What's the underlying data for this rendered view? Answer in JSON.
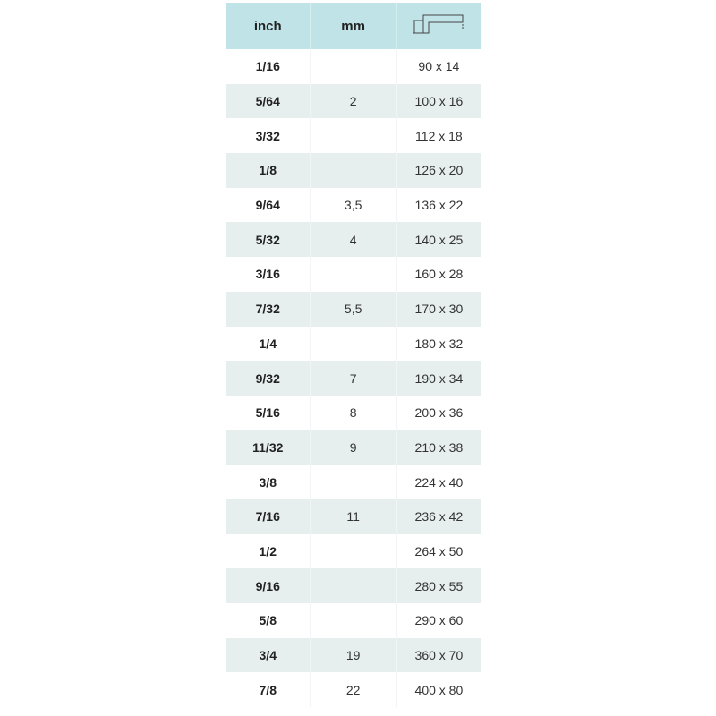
{
  "table": {
    "headers": {
      "inch": "inch",
      "mm": "mm",
      "dimension_icon": "hex-key-dimension-icon"
    },
    "colors": {
      "header_bg": "#c0e3e8",
      "alt_row_bg": "#e6efee"
    },
    "rows": [
      {
        "inch": "1/16",
        "mm": "",
        "size": "90 x 14"
      },
      {
        "inch": "5/64",
        "mm": "2",
        "size": "100 x 16"
      },
      {
        "inch": "3/32",
        "mm": "",
        "size": "112 x 18"
      },
      {
        "inch": "1/8",
        "mm": "",
        "size": "126 x 20"
      },
      {
        "inch": "9/64",
        "mm": "3,5",
        "size": "136 x 22"
      },
      {
        "inch": "5/32",
        "mm": "4",
        "size": "140 x 25"
      },
      {
        "inch": "3/16",
        "mm": "",
        "size": "160 x 28"
      },
      {
        "inch": "7/32",
        "mm": "5,5",
        "size": "170 x 30"
      },
      {
        "inch": "1/4",
        "mm": "",
        "size": "180 x 32"
      },
      {
        "inch": "9/32",
        "mm": "7",
        "size": "190 x 34"
      },
      {
        "inch": "5/16",
        "mm": "8",
        "size": "200 x 36"
      },
      {
        "inch": "11/32",
        "mm": "9",
        "size": "210 x 38"
      },
      {
        "inch": "3/8",
        "mm": "",
        "size": "224 x 40"
      },
      {
        "inch": "7/16",
        "mm": "11",
        "size": "236 x 42"
      },
      {
        "inch": "1/2",
        "mm": "",
        "size": "264 x 50"
      },
      {
        "inch": "9/16",
        "mm": "",
        "size": "280 x 55"
      },
      {
        "inch": "5/8",
        "mm": "",
        "size": "290 x 60"
      },
      {
        "inch": "3/4",
        "mm": "19",
        "size": "360 x 70"
      },
      {
        "inch": "7/8",
        "mm": "22",
        "size": "400 x 80"
      }
    ]
  }
}
